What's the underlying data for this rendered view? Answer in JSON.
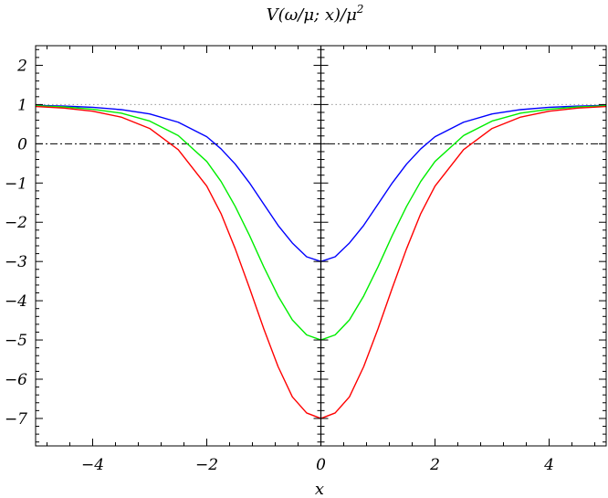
{
  "chart_data": {
    "type": "line",
    "title_parts": [
      "V(ω/μ; x)/μ",
      "2"
    ],
    "xlabel": "x",
    "ylabel": "",
    "xlim": [
      -5,
      5
    ],
    "ylim": [
      -7.7,
      2.5
    ],
    "x_ticks": [
      {
        "value": -4,
        "label": "−4"
      },
      {
        "value": -2,
        "label": "−2"
      },
      {
        "value": 0,
        "label": "0"
      },
      {
        "value": 2,
        "label": "2"
      },
      {
        "value": 4,
        "label": "4"
      }
    ],
    "y_ticks": [
      {
        "value": 2,
        "label": "2"
      },
      {
        "value": 1,
        "label": "1"
      },
      {
        "value": 0,
        "label": "0"
      },
      {
        "value": -1,
        "label": "−1"
      },
      {
        "value": -2,
        "label": "−2"
      },
      {
        "value": -3,
        "label": "−3"
      },
      {
        "value": -4,
        "label": "−4"
      },
      {
        "value": -5,
        "label": "−5"
      },
      {
        "value": -6,
        "label": "−6"
      },
      {
        "value": -7,
        "label": "−7"
      }
    ],
    "reference_lines": [
      {
        "y": 1,
        "style": "dotted",
        "color": "#999999"
      },
      {
        "y": 0,
        "style": "dashdot",
        "color": "#000000"
      }
    ],
    "x": [
      -5,
      -4.5,
      -4,
      -3.5,
      -3,
      -2.5,
      -2,
      -1.75,
      -1.5,
      -1.25,
      -1,
      -0.75,
      -0.5,
      -0.25,
      0,
      0.25,
      0.5,
      0.75,
      1,
      1.25,
      1.5,
      1.75,
      2,
      2.5,
      3,
      3.5,
      4,
      4.5,
      5
    ],
    "series": [
      {
        "color": "#0000ff",
        "values": [
          0.98,
          0.96,
          0.93,
          0.87,
          0.76,
          0.55,
          0.18,
          -0.13,
          -0.52,
          -1.0,
          -1.54,
          -2.08,
          -2.53,
          -2.88,
          -3.0,
          -2.88,
          -2.53,
          -2.08,
          -1.54,
          -1.0,
          -0.52,
          -0.13,
          0.18,
          0.55,
          0.76,
          0.87,
          0.93,
          0.96,
          0.98
        ]
      },
      {
        "color": "#00ee00",
        "values": [
          0.97,
          0.94,
          0.88,
          0.78,
          0.58,
          0.21,
          -0.45,
          -0.96,
          -1.6,
          -2.34,
          -3.14,
          -3.88,
          -4.49,
          -4.87,
          -5.0,
          -4.87,
          -4.49,
          -3.88,
          -3.14,
          -2.34,
          -1.6,
          -0.96,
          -0.45,
          0.21,
          0.58,
          0.78,
          0.88,
          0.94,
          0.97
        ]
      },
      {
        "color": "#ff0000",
        "values": [
          0.95,
          0.91,
          0.83,
          0.68,
          0.39,
          -0.15,
          -1.08,
          -1.78,
          -2.68,
          -3.68,
          -4.72,
          -5.68,
          -6.45,
          -6.86,
          -7.0,
          -6.86,
          -6.45,
          -5.68,
          -4.72,
          -3.68,
          -2.68,
          -1.78,
          -1.08,
          -0.15,
          0.39,
          0.68,
          0.83,
          0.91,
          0.95
        ]
      }
    ]
  }
}
